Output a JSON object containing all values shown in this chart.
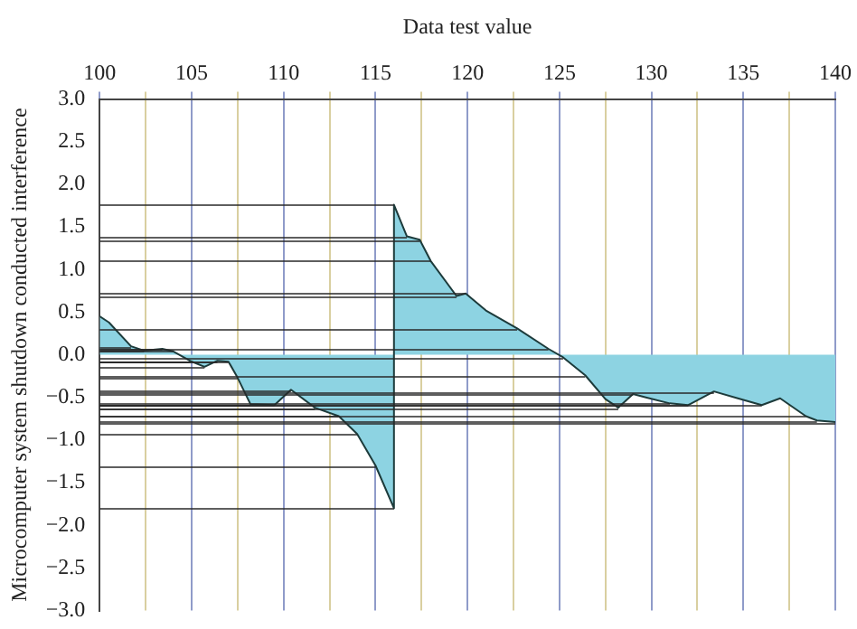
{
  "chart_data": {
    "type": "area",
    "xlabel": "Data test value",
    "ylabel": "Microcomputer system shutdown conducted interference",
    "xlim": [
      100,
      140
    ],
    "xticks": [
      100,
      {
        "value": 102.5,
        "label": null
      },
      105,
      {
        "value": 107.5,
        "label": null
      },
      110,
      {
        "value": 112.5,
        "label": null
      },
      115,
      {
        "value": 117.5,
        "label": null
      },
      120,
      {
        "value": 122.5,
        "label": null
      },
      125,
      {
        "value": 127.5,
        "label": null
      },
      130,
      {
        "value": 132.5,
        "label": null
      },
      135,
      {
        "value": 137.5,
        "label": null
      },
      140
    ],
    "ylim": [
      -3,
      3
    ],
    "yticks": [
      {
        "value": 3,
        "label": "3.0"
      },
      {
        "value": 2.5,
        "label": "2.5"
      },
      {
        "value": 2,
        "label": "2.0"
      },
      {
        "value": 1.5,
        "label": "1.5"
      },
      {
        "value": 1,
        "label": "1.0"
      },
      {
        "value": 0.5,
        "label": "0.5"
      },
      {
        "value": 0,
        "label": "0.0"
      },
      {
        "value": -0.5,
        "label": "−0.5"
      },
      {
        "value": -1,
        "label": "−1.0"
      },
      {
        "value": -1.5,
        "label": "−1.5"
      },
      {
        "value": -2,
        "label": "−2.0"
      },
      {
        "value": -2.5,
        "label": "−2.5"
      },
      {
        "value": -3,
        "label": "−3.0"
      }
    ],
    "grid": "x",
    "legend": false,
    "marker": "none",
    "line_style": "solid",
    "series": [
      {
        "color": "#8dd3e2",
        "x": [
          100,
          100.5,
          101.7,
          102.4,
          103.4,
          104,
          104.9,
          105.7,
          106.4,
          107,
          107.5,
          108.2,
          109.5,
          110.4,
          111.7,
          113,
          114,
          115,
          116,
          116,
          116.7,
          117.4,
          118,
          119.4,
          119.9,
          121,
          122.7,
          124.4,
          125.2,
          126.4,
          127.5,
          128.2,
          129,
          129.7,
          131,
          132,
          133.4,
          134.7,
          136,
          137,
          138.4,
          139,
          140
        ],
        "values": [
          0.45,
          0.38,
          0.1,
          0.05,
          0.07,
          0.04,
          -0.07,
          -0.14,
          -0.07,
          -0.08,
          -0.27,
          -0.58,
          -0.59,
          -0.41,
          -0.62,
          -0.72,
          -0.93,
          -1.3,
          -1.8,
          1.76,
          1.39,
          1.35,
          1.1,
          0.69,
          0.72,
          0.52,
          0.31,
          0.07,
          -0.03,
          -0.24,
          -0.52,
          -0.62,
          -0.46,
          -0.5,
          -0.57,
          -0.59,
          -0.43,
          -0.51,
          -0.59,
          -0.51,
          -0.72,
          -0.77,
          -0.79
        ],
        "xerrors": [
          [
            100,
            100
          ],
          null,
          [
            100,
            101.7
          ],
          [
            100,
            102.4
          ],
          [
            100,
            103.4
          ],
          [
            100,
            104
          ],
          [
            100,
            104.9
          ],
          [
            100,
            105.7
          ],
          [
            100,
            106.4
          ],
          [
            100,
            107
          ],
          [
            100,
            107.5
          ],
          [
            100,
            108.2
          ],
          [
            100,
            109.5
          ],
          [
            100,
            110.4
          ],
          [
            100,
            111.7
          ],
          [
            100,
            113
          ],
          [
            100,
            114
          ],
          [
            100,
            115
          ],
          [
            100,
            116
          ],
          [
            100,
            116
          ],
          [
            100,
            116.7
          ],
          [
            100,
            117.4
          ],
          [
            100,
            118
          ],
          [
            100,
            119.4
          ],
          [
            100,
            119.9
          ],
          null,
          [
            100,
            122.7
          ],
          [
            100,
            124.4
          ],
          [
            100,
            125.2
          ],
          [
            100,
            126.4
          ],
          null,
          [
            100,
            128.2
          ],
          [
            100,
            129
          ],
          null,
          [
            100,
            131
          ],
          [
            100,
            132
          ],
          [
            100,
            133.4
          ],
          null,
          [
            100,
            136
          ],
          null,
          [
            100,
            138.4
          ],
          [
            100,
            139
          ],
          [
            100,
            140
          ]
        ]
      }
    ]
  }
}
